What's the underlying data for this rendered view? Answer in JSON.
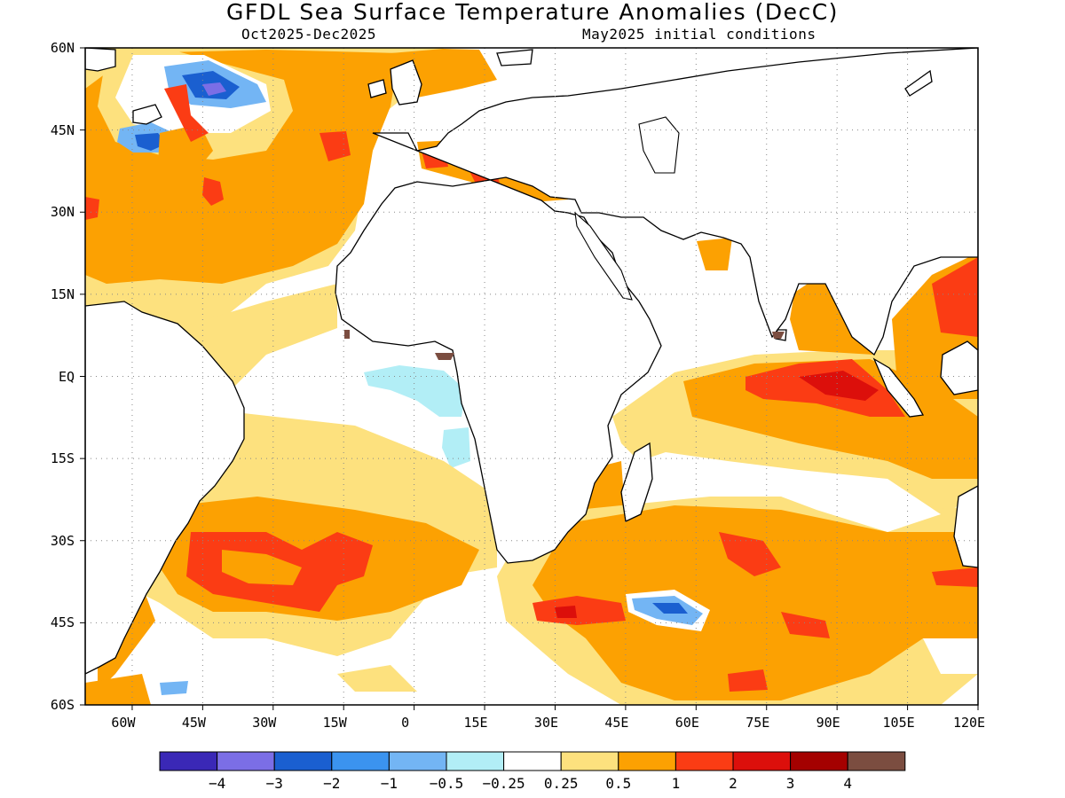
{
  "title": "GFDL Sea Surface Temperature Anomalies (DecC)",
  "subtitle_left": "Oct2025-Dec2025",
  "subtitle_right": "May2025 initial conditions",
  "map": {
    "projection": "lat-lon",
    "lon_range": [
      -70,
      120
    ],
    "lat_range": [
      -60,
      60
    ],
    "grid": "dotted",
    "lat_labels": [
      "60N",
      "45N",
      "30N",
      "15N",
      "EQ",
      "15S",
      "30S",
      "45S",
      "60S"
    ],
    "lon_labels": [
      "60W",
      "45W",
      "30W",
      "15W",
      "0",
      "15E",
      "30E",
      "45E",
      "60E",
      "75E",
      "90E",
      "105E",
      "120E"
    ]
  },
  "legend": {
    "colors": [
      "#3a28b6",
      "#7b6ee6",
      "#1a5fd0",
      "#3b93ef",
      "#73b5f4",
      "#b2eef6",
      "#ffffff",
      "#fde17e",
      "#fca102",
      "#fb3c14",
      "#dc0f0b",
      "#a40100",
      "#7b4d40"
    ],
    "labels": [
      "-4",
      "-3",
      "-2",
      "-1",
      "-0.5",
      "-0.25",
      "0.25",
      "0.5",
      "1",
      "2",
      "3",
      "4"
    ]
  },
  "colors": {
    "weak_warm": "#fde17e",
    "warm": "#fca102",
    "strong_warm": "#fb3c14",
    "very_strong_warm": "#dc0f0b",
    "weak_cool": "#b2eef6",
    "cool": "#73b5f4",
    "strong_cool": "#1a5fd0"
  }
}
